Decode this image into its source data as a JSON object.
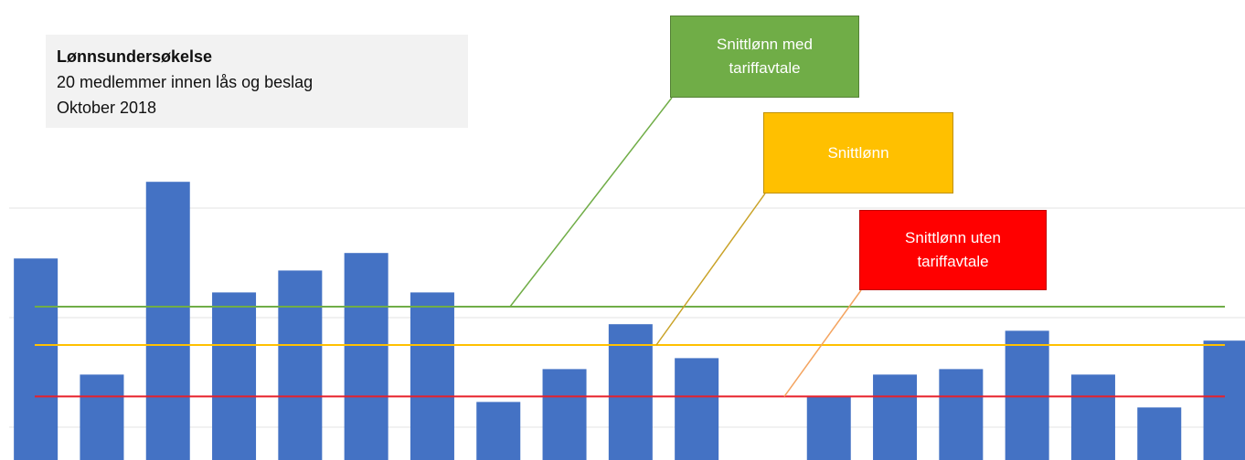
{
  "chart_data": {
    "type": "bar",
    "title": "Lønnsundersøkelse",
    "subtitle": [
      "20 medlemmer innen lås og beslag",
      "Oktober 2018"
    ],
    "categories": [
      null,
      null,
      null,
      null,
      null,
      null,
      null,
      null,
      null,
      null,
      null,
      null,
      null,
      null,
      null,
      null,
      null,
      null,
      null
    ],
    "values": [
      2.54,
      1.48,
      3.24,
      2.23,
      2.43,
      2.59,
      2.23,
      1.23,
      1.53,
      1.94,
      1.63,
      null,
      1.28,
      1.48,
      1.53,
      1.88,
      1.48,
      1.18,
      1.79
    ],
    "color": "#4472c4",
    "ylim": [
      0.7,
      4.9
    ],
    "yticks": [
      1,
      2,
      3
    ],
    "grid": true,
    "reference_lines": [
      {
        "name": "Snittlønn med tariffavtale",
        "value": 2.1,
        "color": "#70ad47",
        "box_color": "#70ad47"
      },
      {
        "name": "Snittlønn",
        "value": 1.75,
        "color": "#ffc000",
        "box_color": "#ffc000"
      },
      {
        "name": "Snittlønn uten tariffavtale",
        "value": 1.28,
        "color": "#e8202a",
        "box_color": "#ff0000"
      }
    ]
  }
}
